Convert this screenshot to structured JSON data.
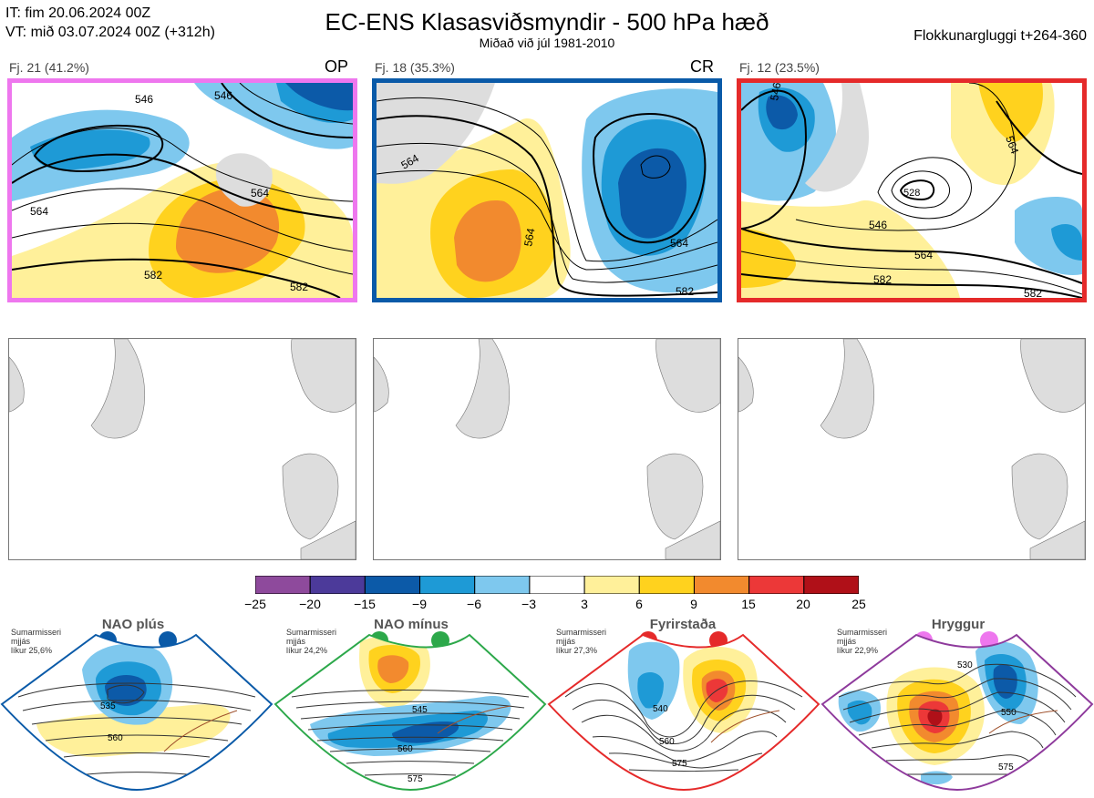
{
  "header": {
    "init_time": "IT: fim 20.06.2024 00Z",
    "valid_time": "VT: mið 03.07.2024 00Z  (+312h)",
    "title": "EC-ENS Klasasviðsmyndir - 500 hPa hæð",
    "subtitle": "Miðað við júl 1981-2010",
    "window": "Flokkunargluggi t+264-360"
  },
  "clusters": [
    {
      "label": "Fj. 21 (41.2%)",
      "tag": "OP",
      "frame_color": "#ee77ee",
      "contour_labels": [
        "546",
        "546",
        "564",
        "564",
        "582",
        "582"
      ]
    },
    {
      "label": "Fj. 18 (35.3%)",
      "tag": "CR",
      "frame_color": "#0a5aa8",
      "contour_labels": [
        "564",
        "564",
        "564",
        "582"
      ]
    },
    {
      "label": "Fj. 12 (23.5%)",
      "tag": "",
      "frame_color": "#e52a2a",
      "contour_labels": [
        "528",
        "546",
        "546",
        "564",
        "564",
        "582",
        "582"
      ]
    }
  ],
  "colorbar": {
    "ticks": [
      "−25",
      "−20",
      "−15",
      "−9",
      "−6",
      "−3",
      "3",
      "6",
      "9",
      "15",
      "20",
      "25"
    ],
    "colors": [
      "#8e4a9c",
      "#4c3a9a",
      "#0c5aa8",
      "#1e9ad6",
      "#7ec8ee",
      "#ffffff",
      "#fff09a",
      "#ffd21e",
      "#f28a2e",
      "#ec3838",
      "#b01018"
    ]
  },
  "regimes": [
    {
      "name": "NAO plús",
      "note": [
        "Sumarmisseri",
        "mjjás",
        "líkur 25,6%"
      ],
      "color": "#0a5aa8",
      "contour_labels": [
        "535",
        "560"
      ]
    },
    {
      "name": "NAO mínus",
      "note": [
        "Sumarmisseri",
        "mjjás",
        "líkur 24,2%"
      ],
      "color": "#2ca84a",
      "contour_labels": [
        "545",
        "560",
        "575"
      ]
    },
    {
      "name": "Fyrirstaða",
      "note": [
        "Sumarmisseri",
        "mjjás",
        "líkur 27,3%"
      ],
      "color": "#e52a2a",
      "contour_labels": [
        "540",
        "560",
        "575"
      ]
    },
    {
      "name": "Hryggur",
      "note": [
        "Sumarmisseri",
        "mjjás",
        "líkur 22,9%"
      ],
      "color": "#ee77ee",
      "contour_labels": [
        "530",
        "550",
        "575"
      ]
    }
  ]
}
